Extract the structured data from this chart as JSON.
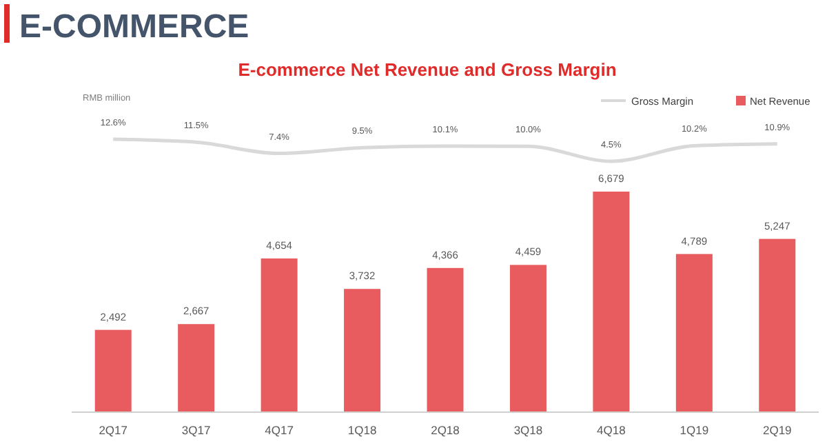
{
  "chart_data": [
    {
      "type": "bar",
      "categories": [
        "2Q17",
        "3Q17",
        "4Q17",
        "1Q18",
        "2Q18",
        "3Q18",
        "4Q18",
        "1Q19",
        "2Q19"
      ],
      "series": [
        {
          "name": "Net Revenue",
          "color": "#e85c5f",
          "values": [
            2492,
            2667,
            4654,
            3732,
            4366,
            4459,
            6679,
            4789,
            5247
          ],
          "value_labels": [
            "2,492",
            "2,667",
            "4,654",
            "3,732",
            "4,366",
            "4,459",
            "6,679",
            "4,789",
            "5,247"
          ]
        }
      ],
      "tick_labels": "x",
      "legend": "top right"
    },
    {
      "type": "line",
      "title": "E-COMMERCE",
      "subtitle": "E-commerce Net Revenue and Gross Margin",
      "annotations": [
        "RMB million"
      ],
      "categories": [
        null,
        null,
        null,
        null,
        null,
        null,
        null,
        null,
        null
      ],
      "series": [
        {
          "name": "Gross Margin",
          "color": "#d9d9d9",
          "values": [
            12.6,
            11.5,
            7.4,
            9.5,
            10.1,
            10.0,
            4.5,
            10.2,
            10.9
          ],
          "value_labels": [
            "12.6%",
            "11.5%",
            "7.4%",
            "9.5%",
            "10.1%",
            "10.0%",
            "4.5%",
            "10.2%",
            "10.9%"
          ]
        }
      ],
      "tick_labels": false,
      "legend": "top right",
      "marker": "none"
    }
  ]
}
